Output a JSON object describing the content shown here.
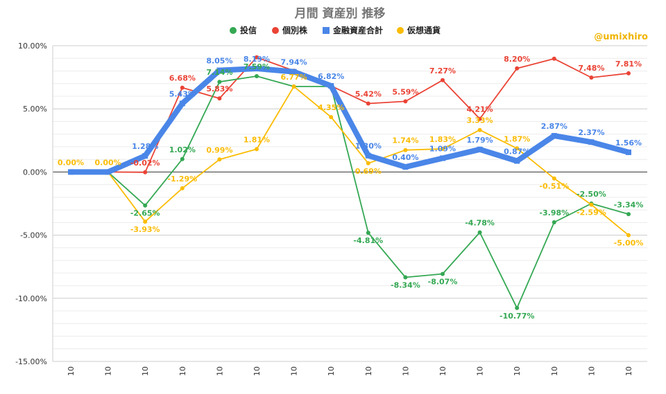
{
  "chart_data": {
    "type": "line",
    "title": "月間 資産別 推移",
    "watermark": "@umixhiro",
    "categories": [
      "10",
      "10",
      "10",
      "10",
      "10",
      "10",
      "10",
      "10",
      "10",
      "10",
      "10",
      "10",
      "10",
      "10",
      "10",
      "10"
    ],
    "y_ticks": [
      "10.00%",
      "5.00%",
      "0.00%",
      "-5.00%",
      "-10.00%",
      "-15.00%"
    ],
    "ylim": [
      -15,
      10
    ],
    "grid": true,
    "legend_position": "top",
    "series": [
      {
        "name": "投信",
        "color": "#34a853",
        "marker": "circle",
        "values": [
          0.0,
          0.0,
          -2.65,
          1.02,
          7.14,
          7.59,
          6.77,
          6.77,
          -4.81,
          -8.34,
          -8.07,
          -4.78,
          -10.77,
          -3.98,
          -2.5,
          -3.34
        ],
        "labels": [
          "",
          "",
          "-2.65%",
          "1.02%",
          "7.14%",
          "7.59%",
          "",
          "",
          "-4.81%",
          "-8.34%",
          "-8.07%",
          "-4.78%",
          "-10.77%",
          "-3.98%",
          "-2.50%",
          "-3.34%"
        ]
      },
      {
        "name": "個別株",
        "color": "#ea4335",
        "marker": "circle",
        "values": [
          0.0,
          0.0,
          -0.02,
          6.68,
          5.83,
          9.08,
          8.02,
          6.82,
          5.42,
          5.59,
          7.27,
          4.21,
          8.2,
          8.97,
          7.48,
          7.81
        ],
        "labels": [
          "",
          "",
          "-0.02%",
          "6.68%",
          "5.83%",
          "",
          "",
          "",
          "5.42%",
          "5.59%",
          "7.27%",
          "4.21%",
          "8.20%",
          "",
          "7.48%",
          "7.81%"
        ]
      },
      {
        "name": "金融資産合計",
        "color": "#4a86e8",
        "marker": "square",
        "values": [
          0.0,
          0.0,
          1.28,
          5.43,
          8.05,
          8.19,
          7.94,
          6.82,
          1.3,
          0.4,
          1.09,
          1.79,
          0.87,
          2.87,
          2.37,
          1.56
        ],
        "labels": [
          "",
          "",
          "1.28%",
          "5.43%",
          "8.05%",
          "8.19%",
          "7.94%",
          "6.82%",
          "1.30%",
          "0.40%",
          "1.09%",
          "1.79%",
          "0.87%",
          "2.87%",
          "2.37%",
          "1.56%"
        ]
      },
      {
        "name": "仮想通貨",
        "color": "#fbbc04",
        "marker": "circle",
        "values": [
          0.0,
          0.0,
          -3.93,
          -1.29,
          0.99,
          1.81,
          6.77,
          4.35,
          0.69,
          1.74,
          1.83,
          3.33,
          1.87,
          -0.51,
          -2.59,
          -5.0
        ],
        "labels": [
          "0.00%",
          "0.00%",
          "-3.93%",
          "-1.29%",
          "0.99%",
          "1.81%",
          "6.77%",
          "4.35%",
          "0.69%",
          "1.74%",
          "1.83%",
          "3.33%",
          "1.87%",
          "-0.51%",
          "-2.59%",
          "-5.00%"
        ]
      }
    ]
  }
}
